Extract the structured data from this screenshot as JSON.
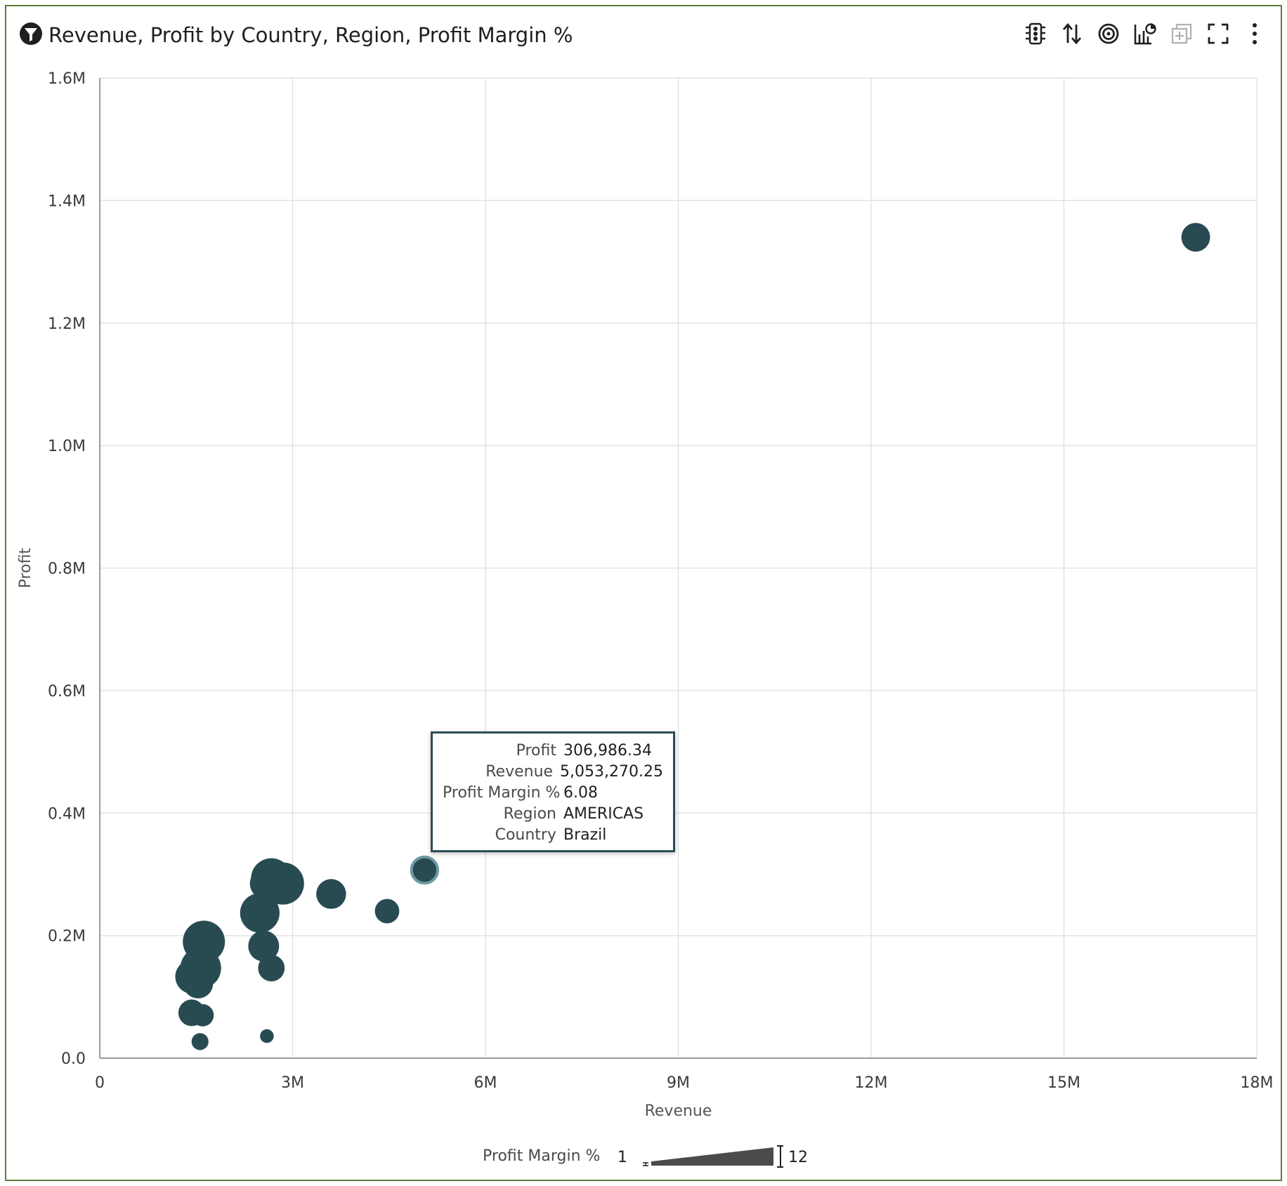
{
  "header": {
    "title": "Revenue, Profit by Country, Region, Profit Margin %",
    "filter_icon": "filter-icon",
    "toolbar": [
      {
        "name": "traffic-light-icon"
      },
      {
        "name": "sort-icon"
      },
      {
        "name": "target-icon"
      },
      {
        "name": "chart-type-icon"
      },
      {
        "name": "add-icon",
        "disabled": true
      },
      {
        "name": "fullscreen-icon"
      },
      {
        "name": "more-options-icon"
      }
    ]
  },
  "colors": {
    "bubble": "#284b52",
    "bubble_highlight": "#6e9aa4",
    "grid": "#e3e3e3",
    "axis": "#9a9a9a",
    "frame": "#5e7d3c"
  },
  "chart_data": {
    "type": "scatter",
    "xlabel": "Revenue",
    "ylabel": "Profit",
    "xlim": [
      0,
      18000000
    ],
    "ylim": [
      0,
      1600000
    ],
    "x_ticks": [
      {
        "value": 0,
        "label": "0"
      },
      {
        "value": 3000000,
        "label": "3M"
      },
      {
        "value": 6000000,
        "label": "6M"
      },
      {
        "value": 9000000,
        "label": "9M"
      },
      {
        "value": 12000000,
        "label": "12M"
      },
      {
        "value": 15000000,
        "label": "15M"
      },
      {
        "value": 18000000,
        "label": "18M"
      }
    ],
    "y_ticks": [
      {
        "value": 0,
        "label": "0.0"
      },
      {
        "value": 200000,
        "label": "0.2M"
      },
      {
        "value": 400000,
        "label": "0.4M"
      },
      {
        "value": 600000,
        "label": "0.6M"
      },
      {
        "value": 800000,
        "label": "0.8M"
      },
      {
        "value": 1000000,
        "label": "1.0M"
      },
      {
        "value": 1200000,
        "label": "1.2M"
      },
      {
        "value": 1400000,
        "label": "1.4M"
      },
      {
        "value": 1600000,
        "label": "1.6M"
      }
    ],
    "grid": true,
    "size_measure": "Profit Margin %",
    "size_range": [
      1,
      12
    ],
    "points": [
      {
        "x": 17050000,
        "y": 1340000,
        "size": 7
      },
      {
        "x": 5053270.25,
        "y": 306986.34,
        "size": 6.08,
        "highlighted": true
      },
      {
        "x": 4470000,
        "y": 240000,
        "size": 5.4
      },
      {
        "x": 3600000,
        "y": 268000,
        "size": 7.4
      },
      {
        "x": 2850000,
        "y": 285000,
        "size": 12
      },
      {
        "x": 2670000,
        "y": 293000,
        "size": 11.5
      },
      {
        "x": 2580000,
        "y": 285000,
        "size": 8
      },
      {
        "x": 2490000,
        "y": 237000,
        "size": 11
      },
      {
        "x": 2550000,
        "y": 183000,
        "size": 7.8
      },
      {
        "x": 2670000,
        "y": 147000,
        "size": 6.2
      },
      {
        "x": 2600000,
        "y": 36000,
        "size": 1.4
      },
      {
        "x": 1620000,
        "y": 190000,
        "size": 12
      },
      {
        "x": 1570000,
        "y": 147000,
        "size": 11.5
      },
      {
        "x": 1440000,
        "y": 133000,
        "size": 9
      },
      {
        "x": 1530000,
        "y": 122000,
        "size": 7.5
      },
      {
        "x": 1430000,
        "y": 74000,
        "size": 6.2
      },
      {
        "x": 1600000,
        "y": 70000,
        "size": 4.6
      },
      {
        "x": 1560000,
        "y": 27000,
        "size": 2.6
      }
    ]
  },
  "tooltip": {
    "rows": [
      {
        "label": "Profit",
        "value": "306,986.34"
      },
      {
        "label": "Revenue",
        "value": "5,053,270.25"
      },
      {
        "label": "Profit Margin %",
        "value": "6.08"
      },
      {
        "label": "Region",
        "value": "AMERICAS"
      },
      {
        "label": "Country",
        "value": "Brazil"
      }
    ]
  },
  "legend": {
    "title": "Profit Margin %",
    "min_label": "1",
    "max_label": "12"
  }
}
